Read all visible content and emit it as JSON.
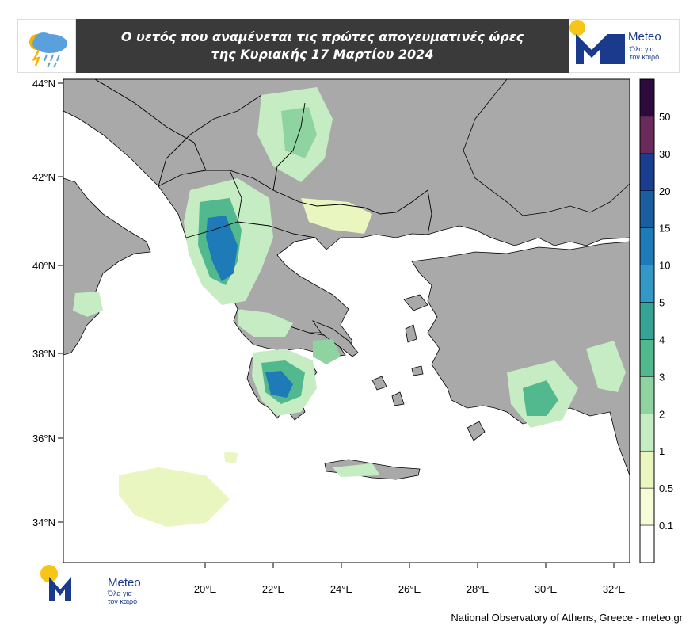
{
  "header": {
    "title_line1": "Ο υετός που αναμένεται τις πρώτες απογευματινές ώρες",
    "title_line2": "της Κυριακής 17 Μαρτίου 2024",
    "icon": "rain-cloud-icon"
  },
  "logo": {
    "brand": "Meteo",
    "tagline_line1": "Όλα για",
    "tagline_line2": "τον καιρό"
  },
  "map": {
    "lat_ticks": [
      "44°N",
      "42°N",
      "40°N",
      "38°N",
      "36°N",
      "34°N"
    ],
    "lon_ticks": [
      "20°E",
      "22°E",
      "24°E",
      "26°E",
      "28°E",
      "30°E",
      "32°E"
    ],
    "land_color": "#a9a9a9",
    "sea_color": "#ffffff"
  },
  "legend": {
    "labels": [
      "50",
      "30",
      "20",
      "15",
      "10",
      "5",
      "4",
      "3",
      "2",
      "1",
      "0.5",
      "0.1"
    ],
    "colors": [
      "#2e0a3c",
      "#6a2a5c",
      "#1a3e8f",
      "#1b5ea0",
      "#1f7ab8",
      "#3498c6",
      "#37a395",
      "#52b88e",
      "#8fd4a0",
      "#c6ecc4",
      "#eaf6c0",
      "#f6fbd8",
      "#ffffff"
    ]
  },
  "footer": {
    "credit": "National Observatory of Athens, Greece - meteo.gr"
  }
}
